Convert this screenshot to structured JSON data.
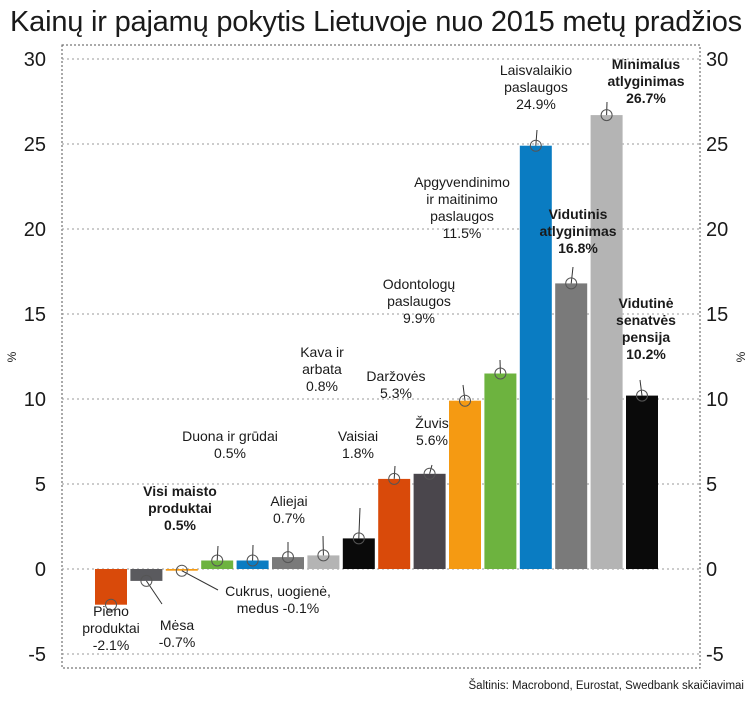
{
  "title": "Kainų ir pajamų pokytis Lietuvoje nuo 2015 metų pradžios",
  "source": "Šaltinis: Macrobond, Eurostat, Swedbank skaičiavimai",
  "chart_data": {
    "type": "bar",
    "title": "Kainų ir pajamų pokytis Lietuvoje nuo 2015 metų pradžios",
    "ylabel": "%",
    "ylabel_right": "%",
    "ylim": [
      -6,
      30.5
    ],
    "yticks": [
      -5,
      0,
      5,
      10,
      15,
      20,
      25,
      30
    ],
    "grid": true,
    "legend": "none",
    "bars": [
      {
        "label_lines": [
          "Pieno",
          "produktai",
          "-2.1%"
        ],
        "value": -2.1,
        "color": "#d94a0a",
        "bold": false
      },
      {
        "label_lines": [
          "Mėsa",
          "-0.7%"
        ],
        "value": -0.7,
        "color": "#5a5a5e",
        "bold": false
      },
      {
        "label_lines": [
          "Cukrus, uogienė,",
          "medus -0.1%"
        ],
        "value": -0.1,
        "color": "#f59a12",
        "bold": false
      },
      {
        "label_lines": [
          "Visi maisto",
          "produktai",
          "0.5%"
        ],
        "value": 0.5,
        "color": "#6db33f",
        "bold": true
      },
      {
        "label_lines": [
          "Duona ir grūdai",
          "0.5%"
        ],
        "value": 0.5,
        "color": "#0a7cc2",
        "bold": false
      },
      {
        "label_lines": [
          "Aliejai",
          "0.7%"
        ],
        "value": 0.7,
        "color": "#7a7a7a",
        "bold": false
      },
      {
        "label_lines": [
          "Kava ir",
          "arbata",
          "0.8%"
        ],
        "value": 0.8,
        "color": "#b4b4b4",
        "bold": false
      },
      {
        "label_lines": [
          "Vaisiai",
          "1.8%"
        ],
        "value": 1.8,
        "color": "#0a0a0a",
        "bold": false
      },
      {
        "label_lines": [
          "Daržovės",
          "5.3%"
        ],
        "value": 5.3,
        "color": "#d94a0a",
        "bold": false
      },
      {
        "label_lines": [
          "Žuvis",
          "5.6%"
        ],
        "value": 5.6,
        "color": "#4a464c",
        "bold": false
      },
      {
        "label_lines": [
          "Odontologų",
          "paslaugos",
          "9.9%"
        ],
        "value": 9.9,
        "color": "#f59a12",
        "bold": false
      },
      {
        "label_lines": [
          "Apgyvendinimo",
          "ir maitinimo",
          "paslaugos",
          "11.5%"
        ],
        "value": 11.5,
        "color": "#6db33f",
        "bold": false
      },
      {
        "label_lines": [
          "Laisvalaikio",
          "paslaugos",
          "24.9%"
        ],
        "value": 24.9,
        "color": "#0a7cc2",
        "bold": false
      },
      {
        "label_lines": [
          "Vidutinis",
          "atlyginimas",
          "16.8%"
        ],
        "value": 16.8,
        "color": "#7a7a7a",
        "bold": true
      },
      {
        "label_lines": [
          "Minimalus",
          "atlyginimas",
          "26.7%"
        ],
        "value": 26.7,
        "color": "#b4b4b4",
        "bold": true
      },
      {
        "label_lines": [
          "Vidutinė",
          "senatvės",
          "pensija",
          "10.2%"
        ],
        "value": 10.2,
        "color": "#0a0a0a",
        "bold": true
      }
    ]
  }
}
